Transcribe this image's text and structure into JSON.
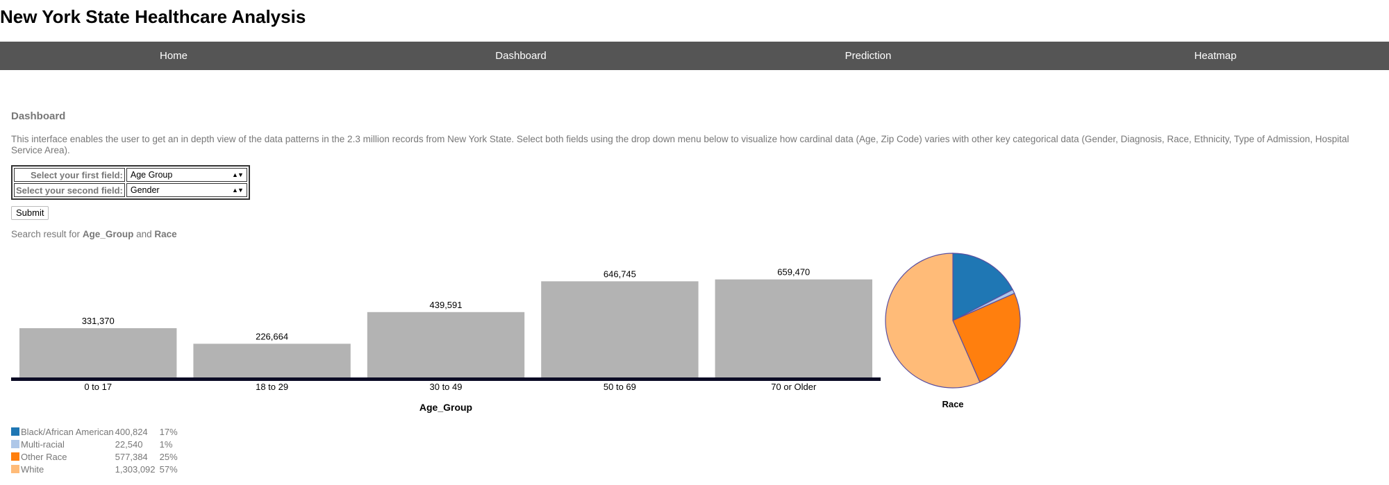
{
  "header": {
    "title": "New York State Healthcare Analysis"
  },
  "nav": {
    "items": [
      "Home",
      "Dashboard",
      "Prediction",
      "Heatmap"
    ]
  },
  "dashboard": {
    "title": "Dashboard",
    "description": "This interface enables the user to get an in depth view of the data patterns in the 2.3 million records from New York State. Select both fields using the drop down menu below to visualize how cardinal data (Age, Zip Code) varies with other key categorical data (Gender, Diagnosis, Race, Ethnicity, Type of Admission, Hospital Service Area).",
    "first_field_label": "Select your first field:",
    "first_field_value": "Age Group",
    "second_field_label": "Select your second field:",
    "second_field_value": "Gender",
    "submit_label": "Submit",
    "result_prefix": "Search result for",
    "result_field1": "Age_Group",
    "result_and": "and",
    "result_field2": "Race"
  },
  "colors": {
    "bar": "#b3b3b3",
    "axis": "#0b0b25",
    "pie_stroke": "#5a4fa0",
    "black_african_american": "#1f77b4",
    "multi_racial": "#aec7e8",
    "other_race": "#ff7f0e",
    "white": "#ffbb78"
  },
  "chart_data": [
    {
      "type": "bar",
      "categories": [
        "0 to 17",
        "18 to 29",
        "30 to 49",
        "50 to 69",
        "70 or Older"
      ],
      "values": [
        331370,
        226664,
        439591,
        646745,
        659470
      ],
      "value_labels": [
        "331,370",
        "226,664",
        "439,591",
        "646,745",
        "659,470"
      ],
      "xlabel": "Age_Group",
      "ylim": [
        0,
        700000
      ],
      "grid": false
    },
    {
      "type": "pie",
      "title": "Race",
      "labels": [
        "Black/African American",
        "Multi-racial",
        "Other Race",
        "White"
      ],
      "values": [
        400824,
        22540,
        577384,
        1303092
      ],
      "value_labels": [
        "400,824",
        "22,540",
        "577,384",
        "1,303,092"
      ],
      "percents": [
        "17%",
        "1%",
        "25%",
        "57%"
      ],
      "color_keys": [
        "black_african_american",
        "multi_racial",
        "other_race",
        "white"
      ]
    }
  ]
}
